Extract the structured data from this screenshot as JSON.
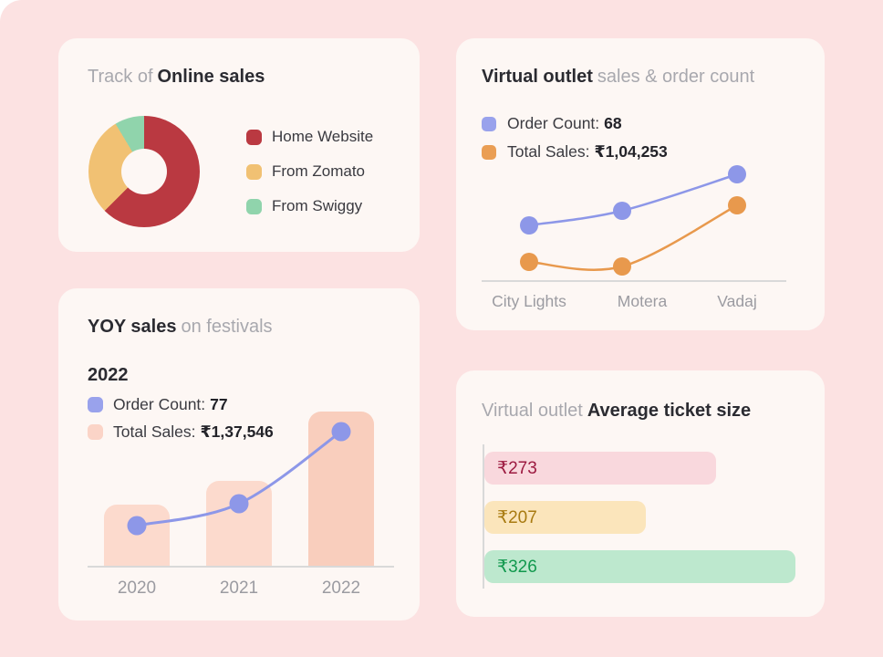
{
  "theme": {
    "page_bg": "#fce2e2",
    "card_bg": "#fdf7f4",
    "title_muted": "#a8a8ae",
    "title_dark": "#2b2b31",
    "axis_line": "#d9d9d9",
    "axis_label": "#9b9ba1",
    "legend_text": "#3a3a40"
  },
  "cards": {
    "online": {
      "title_muted": "Track of",
      "title_bold": "Online sales",
      "legend": [
        {
          "label": "Home Website",
          "color": "#ba3941"
        },
        {
          "label": "From Zomato",
          "color": "#f1c173"
        },
        {
          "label": "From Swiggy",
          "color": "#90d4ac"
        }
      ]
    },
    "outlet": {
      "title_bold": "Virtual outlet",
      "title_muted": "sales & order count",
      "legend": [
        {
          "label": "Order Count:",
          "value": "68",
          "color": "#99a2ec"
        },
        {
          "label": "Total Sales:",
          "value": "₹1,04,253",
          "color": "#ea9e54"
        }
      ]
    },
    "yoy": {
      "title_bold": "YOY sales",
      "title_muted": "on festivals",
      "year": "2022",
      "legend": [
        {
          "label": "Order Count:",
          "value": "77",
          "color": "#99a2ec"
        },
        {
          "label": "Total Sales:",
          "value": "₹1,37,546",
          "color": "#fbd4c7"
        }
      ]
    },
    "ticket": {
      "title_muted": "Virtual outlet",
      "title_bold": "Average ticket size"
    }
  },
  "chart_data": [
    {
      "type": "pie",
      "donut": true,
      "title": "Track of Online sales",
      "labels": [
        "Home Website",
        "From Zomato",
        "From Swiggy"
      ],
      "values_pct": [
        62.5,
        28.9,
        8.6
      ],
      "colors": [
        "#ba3941",
        "#f1c173",
        "#90d4ac"
      ],
      "legend_position": "right"
    },
    {
      "type": "line",
      "title": "Virtual outlet sales & order count",
      "categories": [
        "City Lights",
        "Motera",
        "Vadaj"
      ],
      "series": [
        {
          "name": "Order Count",
          "legend_value": "68",
          "color": "#8d97e8",
          "values_relative": [
            61,
            77,
            117
          ]
        },
        {
          "name": "Total Sales",
          "legend_value": "₹1,04,253",
          "color": "#e8994d",
          "values_relative": [
            21,
            16,
            83
          ]
        }
      ],
      "grid": false,
      "note": "no numeric axis shown; values are relative heights above the baseline"
    },
    {
      "type": "bar",
      "title": "YOY sales on festivals",
      "categories": [
        "2020",
        "2021",
        "2022"
      ],
      "series": [
        {
          "name": "Total Sales",
          "type": "bar",
          "color": "#fcdacd",
          "highlight_color": "#f9cebd",
          "values_relative": [
            67,
            93,
            169
          ]
        },
        {
          "name": "Order Count",
          "type": "line",
          "color": "#8d97e8",
          "values_relative": [
            44,
            68,
            147
          ]
        }
      ],
      "callout": {
        "year": "2022",
        "order_count": "77",
        "total_sales": "₹1,37,546"
      },
      "note": "no numeric axis shown; values are relative heights above the baseline"
    },
    {
      "type": "bar",
      "orientation": "horizontal",
      "title": "Virtual outlet Average ticket size",
      "labels": [
        "₹273",
        "₹207",
        "₹326"
      ],
      "values": [
        273,
        207,
        326
      ],
      "bar_width_pct": [
        73,
        51,
        98
      ],
      "bar_colors": [
        "#f9d8dd",
        "#fbe5bb",
        "#bde8ce"
      ],
      "text_colors": [
        "#9c1a40",
        "#a87a10",
        "#12994e"
      ]
    }
  ]
}
